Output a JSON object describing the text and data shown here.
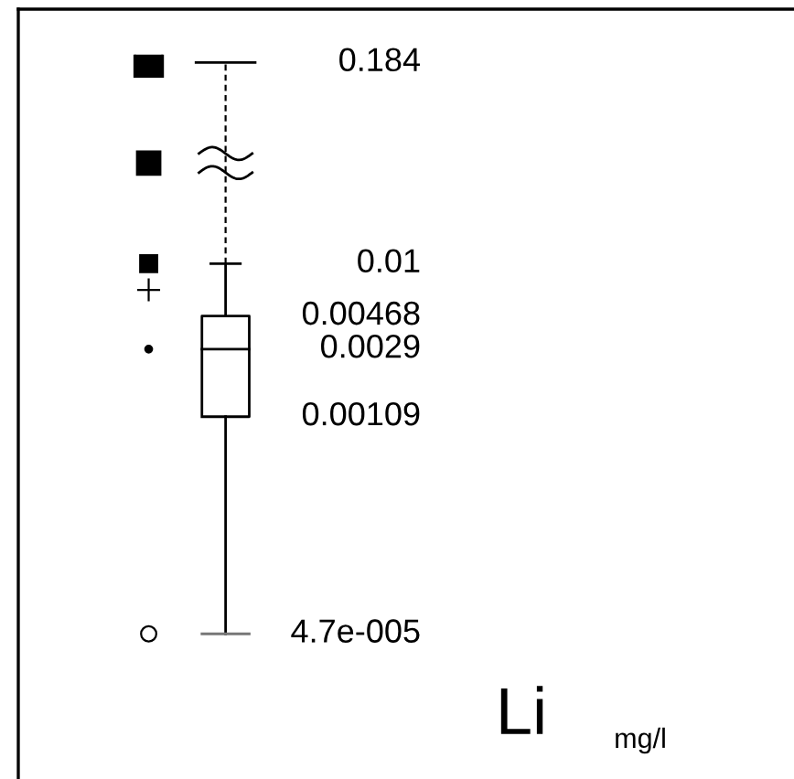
{
  "chart_data": {
    "type": "other",
    "title": "Li",
    "subtitle": "mg/l",
    "values": [
      0.184,
      0.01,
      0.00468,
      0.0029,
      0.00109,
      4.7e-05
    ],
    "value_labels": [
      "0.184",
      "0.01",
      "0.00468",
      "0.0029",
      "0.00109",
      "4.7e-005"
    ]
  }
}
